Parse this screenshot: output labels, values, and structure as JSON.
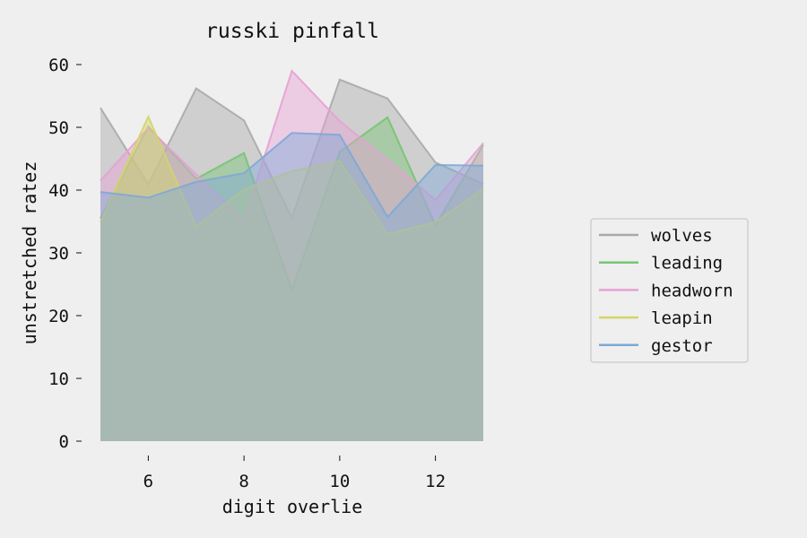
{
  "chart_data": {
    "type": "area",
    "title": "russki pinfall",
    "xlabel": "digit overlie",
    "ylabel": "unstretched ratez",
    "x": [
      5,
      6,
      7,
      8,
      9,
      10,
      11,
      12,
      13
    ],
    "xlim": [
      5,
      13
    ],
    "ylim": [
      0,
      60
    ],
    "xticks": [
      6,
      8,
      10,
      12
    ],
    "yticks": [
      0,
      10,
      20,
      30,
      40,
      50,
      60
    ],
    "grid": false,
    "legend_position": "right",
    "series": [
      {
        "name": "wolves",
        "color": "#a8a8a8",
        "values": [
          53.1,
          40.9,
          56.2,
          51.1,
          35.6,
          57.6,
          54.6,
          44.4,
          41.0
        ]
      },
      {
        "name": "leading",
        "color": "#77c473",
        "values": [
          35.5,
          50.1,
          41.8,
          45.9,
          24.1,
          46.1,
          51.6,
          34.4,
          47.2
        ]
      },
      {
        "name": "headworn",
        "color": "#e6a1d4",
        "values": [
          41.5,
          49.9,
          42.5,
          35.2,
          59.0,
          51.0,
          44.8,
          38.4,
          47.5
        ]
      },
      {
        "name": "leapin",
        "color": "#d4d46a",
        "values": [
          34.9,
          51.7,
          34.2,
          40.1,
          43.0,
          44.6,
          33.0,
          34.9,
          40.2
        ]
      },
      {
        "name": "gestor",
        "color": "#7ea9d6",
        "values": [
          39.7,
          38.8,
          41.3,
          42.7,
          49.1,
          48.8,
          35.7,
          44.0,
          43.9
        ]
      }
    ]
  }
}
